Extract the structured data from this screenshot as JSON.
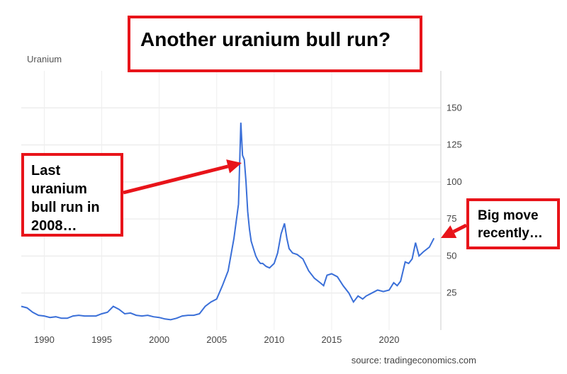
{
  "annotations": {
    "title": "Another uranium bull run?",
    "left_note": [
      "Last",
      "uranium",
      "bull run in",
      "2008…"
    ],
    "right_note": [
      "Big move",
      "recently…"
    ],
    "box_color": "#e8141a"
  },
  "source": "source: tradingeconomics.com",
  "chart_data": {
    "type": "line",
    "title": "",
    "series_label": "Uranium",
    "xlabel": "",
    "ylabel": "",
    "xlim": [
      1988,
      2024.5
    ],
    "ylim": [
      0,
      175
    ],
    "x_ticks": [
      1990,
      1995,
      2000,
      2005,
      2010,
      2015,
      2020
    ],
    "y_ticks": [
      25,
      50,
      75,
      100,
      125,
      150
    ],
    "grid": true,
    "y_axis_side": "right",
    "line_color": "#3a6fd8",
    "series": [
      {
        "x": [
          1988.0,
          1988.5,
          1989.0,
          1989.5,
          1990.0,
          1990.5,
          1991.0,
          1991.5,
          1992.0,
          1992.5,
          1993.0,
          1993.5,
          1994.0,
          1994.5,
          1995.0,
          1995.5,
          1996.0,
          1996.5,
          1997.0,
          1997.5,
          1998.0,
          1998.5,
          1999.0,
          1999.5,
          2000.0,
          2000.5,
          2001.0,
          2001.5,
          2002.0,
          2002.5,
          2003.0,
          2003.5,
          2004.0,
          2004.5,
          2005.0,
          2005.5,
          2006.0,
          2006.5,
          2006.9,
          2007.1,
          2007.25,
          2007.4,
          2007.55,
          2007.7,
          2007.85,
          2008.0,
          2008.2,
          2008.4,
          2008.6,
          2008.8,
          2009.0,
          2009.3,
          2009.6,
          2010.0,
          2010.3,
          2010.6,
          2010.9,
          2011.1,
          2011.3,
          2011.6,
          2012.0,
          2012.5,
          2013.0,
          2013.5,
          2014.0,
          2014.3,
          2014.6,
          2015.0,
          2015.5,
          2016.0,
          2016.5,
          2016.9,
          2017.3,
          2017.7,
          2018.0,
          2018.5,
          2019.0,
          2019.5,
          2020.0,
          2020.4,
          2020.7,
          2021.0,
          2021.4,
          2021.7,
          2022.0,
          2022.3,
          2022.6,
          2023.0,
          2023.5,
          2023.9
        ],
        "values": [
          16,
          15,
          12,
          10,
          9.5,
          8.5,
          9,
          8,
          8,
          9.5,
          10,
          9.5,
          9.5,
          9.5,
          11,
          12,
          16,
          14,
          11,
          11.5,
          10,
          9.5,
          10,
          9,
          8.5,
          7.5,
          7,
          8,
          9.5,
          10,
          10,
          11,
          16,
          19,
          21,
          30,
          40,
          62,
          85,
          140,
          118,
          115,
          100,
          80,
          68,
          60,
          55,
          50,
          47,
          45,
          45,
          43,
          42,
          45,
          52,
          65,
          72,
          62,
          55,
          52,
          51,
          48,
          40,
          35,
          32,
          30,
          37,
          38,
          36,
          30,
          25,
          19,
          23,
          21,
          23,
          25,
          27,
          26,
          27,
          32,
          30,
          33,
          46,
          45,
          48,
          59,
          50,
          53,
          56,
          62
        ]
      }
    ]
  }
}
